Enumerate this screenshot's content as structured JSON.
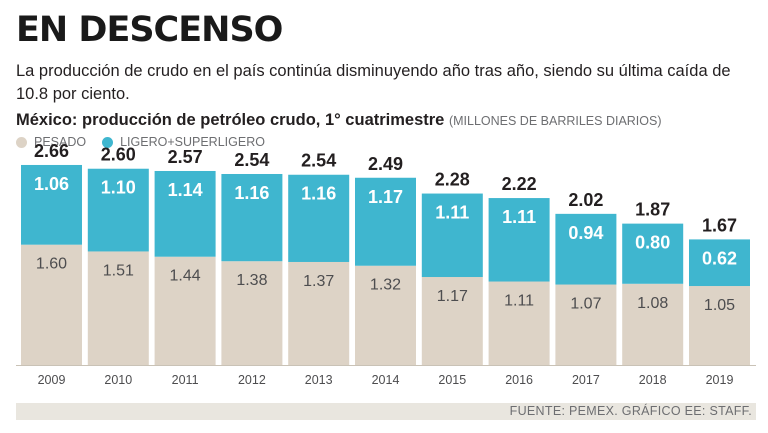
{
  "headline": "EN DESCENSO",
  "subhead": "La producción de crudo en el país continúa disminuyendo año tras año, siendo su última caída de 10.8 por ciento.",
  "chart_title_bold": "México: producción de petróleo crudo, 1° cuatrimestre",
  "chart_title_units": "(MILLONES DE BARRILES DIARIOS)",
  "source": "FUENTE: PEMEX. GRÁFICO EE: STAFF.",
  "colors": {
    "pesado": "#ddd3c6",
    "ligero": "#3fb6cf",
    "text": "#231f20",
    "axis_label": "#4d4d4f"
  },
  "chart_data": {
    "type": "bar",
    "stacked": true,
    "title": "México: producción de petróleo crudo, 1° cuatrimestre",
    "ylabel": "Millones de barriles diarios",
    "ylim": [
      0,
      2.66
    ],
    "categories": [
      "2009",
      "2010",
      "2011",
      "2012",
      "2013",
      "2014",
      "2015",
      "2016",
      "2017",
      "2018",
      "2019"
    ],
    "series": [
      {
        "name": "PESADO",
        "color": "#ddd3c6",
        "values": [
          1.6,
          1.51,
          1.44,
          1.38,
          1.37,
          1.32,
          1.17,
          1.11,
          1.07,
          1.08,
          1.05
        ],
        "labels": [
          "1.60",
          "1.51",
          "1.44",
          "1.38",
          "1.37",
          "1.32",
          "1.17",
          "1.11",
          "1.07",
          "1.08",
          "1.05"
        ]
      },
      {
        "name": "LIGERO+SUPERLIGERO",
        "color": "#3fb6cf",
        "values": [
          1.06,
          1.1,
          1.14,
          1.16,
          1.16,
          1.17,
          1.11,
          1.11,
          0.94,
          0.8,
          0.62
        ],
        "labels": [
          "1.06",
          "1.10",
          "1.14",
          "1.16",
          "1.16",
          "1.17",
          "1.11",
          "1.11",
          "0.94",
          "0.80",
          "0.62"
        ]
      }
    ],
    "totals": [
      2.66,
      2.6,
      2.57,
      2.54,
      2.54,
      2.49,
      2.28,
      2.22,
      2.02,
      1.87,
      1.67
    ],
    "total_labels": [
      "2.66",
      "2.60",
      "2.57",
      "2.54",
      "2.54",
      "2.49",
      "2.28",
      "2.22",
      "2.02",
      "1.87",
      "1.67"
    ]
  }
}
